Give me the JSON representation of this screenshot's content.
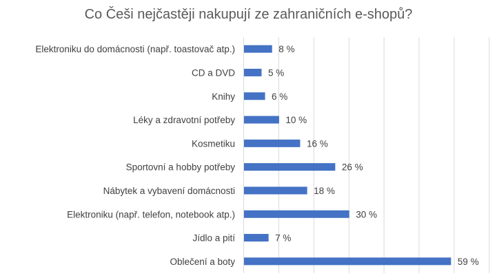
{
  "chart_data": {
    "type": "bar",
    "orientation": "horizontal",
    "title": "Co Češi nejčastěji nakupují ze zahraničních e-shopů?",
    "categories": [
      "Elektroniku do domácnosti (např. toastovač atp.)",
      "CD a DVD",
      "Knihy",
      "Léky a zdravotní potřeby",
      "Kosmetiku",
      "Sportovní a hobby potřeby",
      "Nábytek a vybavení domácnosti",
      "Elektroniku (např. telefon, notebook atp.)",
      "Jídlo a pití",
      "Oblečení a boty"
    ],
    "values": [
      8,
      5,
      6,
      10,
      16,
      26,
      18,
      30,
      7,
      59
    ],
    "data_labels": [
      "8 %",
      "5 %",
      "6 %",
      "10 %",
      "16 %",
      "26 %",
      "18 %",
      "30 %",
      "7 %",
      "59 %"
    ],
    "xlim": [
      0,
      70
    ],
    "grid_step": 10,
    "grid": true,
    "bar_color": "#4472C4",
    "xlabel": "",
    "ylabel": ""
  }
}
